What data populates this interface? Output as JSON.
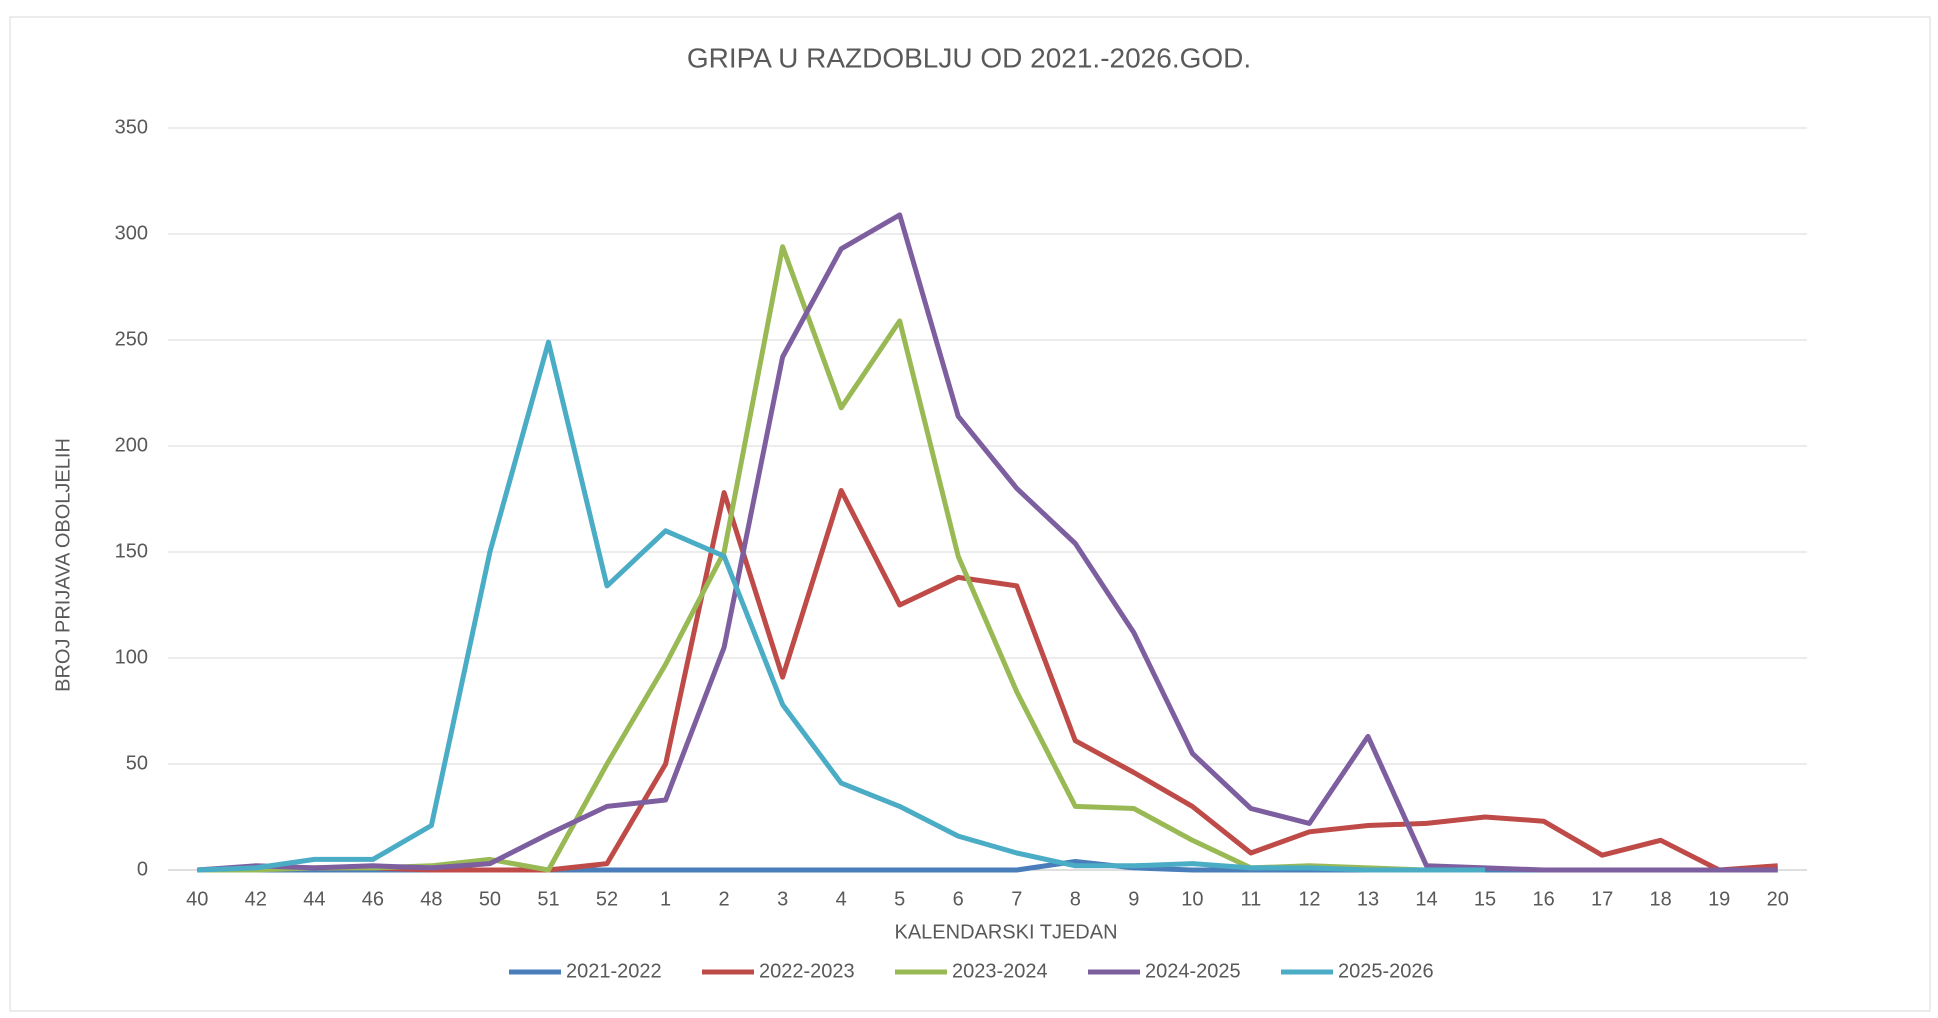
{
  "chart_data": {
    "type": "line",
    "title": "GRIPA U RAZDOBLJU OD 2021.-2026.GOD.",
    "x_label": "KALENDARSKI TJEDAN",
    "y_label": "BROJ PRIJAVA OBOLJELIH",
    "categories": [
      "40",
      "42",
      "44",
      "46",
      "48",
      "50",
      "51",
      "52",
      "1",
      "2",
      "3",
      "4",
      "5",
      "6",
      "7",
      "8",
      "9",
      "10",
      "11",
      "12",
      "13",
      "14",
      "15",
      "16",
      "17",
      "18",
      "19",
      "20"
    ],
    "ylim": [
      0,
      350
    ],
    "yticks": [
      0,
      50,
      100,
      150,
      200,
      250,
      300,
      350
    ],
    "grid": true,
    "legend": "bottom",
    "series": [
      {
        "name": "2021-2022",
        "color": "#4a7ebb",
        "values": [
          0,
          0,
          0,
          0,
          0,
          0,
          0,
          0,
          0,
          0,
          0,
          0,
          0,
          0,
          0,
          4,
          1,
          0,
          0,
          0,
          0,
          0,
          0,
          0,
          0,
          0,
          0,
          0
        ]
      },
      {
        "name": "2022-2023",
        "color": "#be4b48",
        "values": [
          0,
          1,
          1,
          1,
          0,
          0,
          0,
          3,
          50,
          178,
          91,
          179,
          125,
          138,
          134,
          61,
          46,
          30,
          8,
          18,
          21,
          22,
          25,
          23,
          7,
          14,
          0,
          2
        ]
      },
      {
        "name": "2023-2024",
        "color": "#98b954",
        "values": [
          0,
          0,
          1,
          1,
          2,
          5,
          0,
          50,
          97,
          150,
          294,
          218,
          259,
          148,
          84,
          30,
          29,
          14,
          1,
          2,
          1,
          0,
          null,
          null,
          null,
          null,
          null,
          null
        ]
      },
      {
        "name": "2024-2025",
        "color": "#7d5fa0",
        "values": [
          0,
          2,
          1,
          2,
          1,
          3,
          17,
          30,
          33,
          105,
          242,
          293,
          309,
          214,
          180,
          154,
          112,
          55,
          29,
          22,
          63,
          2,
          1,
          0,
          0,
          0,
          0,
          0
        ]
      },
      {
        "name": "2025-2026",
        "color": "#4bacc6",
        "values": [
          0,
          1,
          5,
          5,
          21,
          150,
          249,
          134,
          160,
          148,
          78,
          41,
          30,
          16,
          8,
          2,
          2,
          3,
          1,
          1,
          0,
          0,
          0,
          null,
          null,
          null,
          null,
          null
        ]
      }
    ]
  }
}
